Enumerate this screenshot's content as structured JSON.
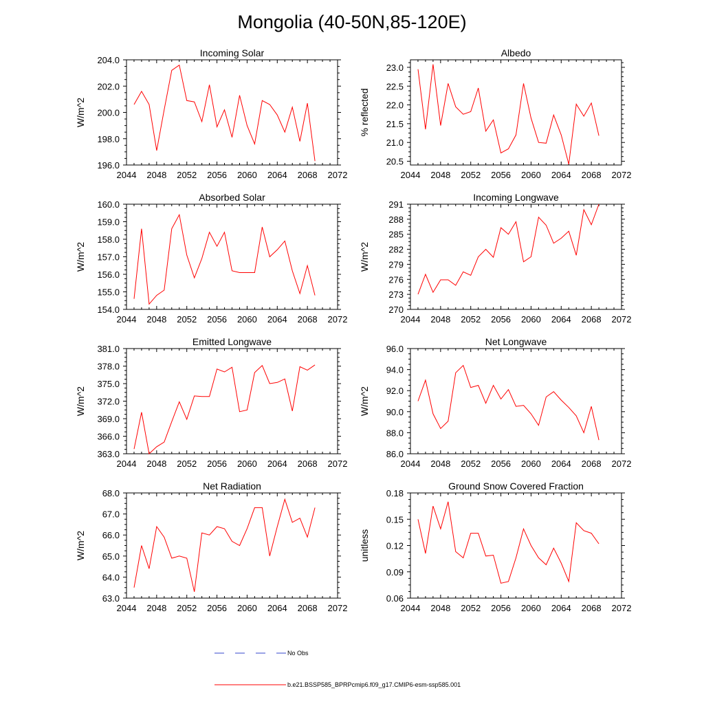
{
  "figure": {
    "title": "Mongolia (40-50N,85-120E)",
    "legend": {
      "no_obs_label": "No Obs",
      "no_obs_color": "#3344cc",
      "run_label": "b.e21.BSSP585_BPRPcmip6.f09_g17.CMIP6-esm-ssp585.001",
      "run_color": "#ff0000"
    }
  },
  "chart_data": [
    {
      "type": "line",
      "title": "Incoming Solar",
      "ylabel": "W/m^2",
      "xlim": [
        2044,
        2072
      ],
      "ylim": [
        196.0,
        204.0
      ],
      "xticks": [
        2044,
        2048,
        2052,
        2056,
        2060,
        2064,
        2068,
        2072
      ],
      "yticks": [
        "196.0",
        "198.0",
        "200.0",
        "202.0",
        "204.0"
      ],
      "x": [
        2045,
        2046,
        2047,
        2048,
        2049,
        2050,
        2051,
        2052,
        2053,
        2054,
        2055,
        2056,
        2057,
        2058,
        2059,
        2060,
        2061,
        2062,
        2063,
        2064,
        2065,
        2066,
        2067,
        2068,
        2069
      ],
      "series": [
        {
          "values": [
            200.6,
            201.6,
            200.6,
            197.1,
            200.2,
            203.2,
            203.6,
            200.9,
            200.8,
            199.3,
            202.1,
            198.9,
            200.2,
            198.1,
            201.3,
            199.0,
            197.6,
            200.9,
            200.6,
            199.8,
            198.5,
            200.4,
            197.8,
            200.7,
            196.3
          ]
        }
      ]
    },
    {
      "type": "line",
      "title": "Albedo",
      "ylabel": "% reflected",
      "xlim": [
        2044,
        2072
      ],
      "ylim": [
        20.4,
        23.2
      ],
      "xticks": [
        2044,
        2048,
        2052,
        2056,
        2060,
        2064,
        2068,
        2072
      ],
      "yticks": [
        "20.5",
        "21.0",
        "21.5",
        "22.0",
        "22.5",
        "23.0"
      ],
      "x": [
        2045,
        2046,
        2047,
        2048,
        2049,
        2050,
        2051,
        2052,
        2053,
        2054,
        2055,
        2056,
        2057,
        2058,
        2059,
        2060,
        2061,
        2062,
        2063,
        2064,
        2065,
        2066,
        2067,
        2068,
        2069
      ],
      "series": [
        {
          "values": [
            22.95,
            21.35,
            23.08,
            21.45,
            22.57,
            21.95,
            21.75,
            21.82,
            22.45,
            21.3,
            21.6,
            20.72,
            20.83,
            21.2,
            22.57,
            21.65,
            21.0,
            20.98,
            21.73,
            21.2,
            20.42,
            22.02,
            21.7,
            22.05,
            21.18
          ]
        }
      ]
    },
    {
      "type": "line",
      "title": "Absorbed Solar",
      "ylabel": "W/m^2",
      "xlim": [
        2044,
        2072
      ],
      "ylim": [
        154.0,
        160.0
      ],
      "xticks": [
        2044,
        2048,
        2052,
        2056,
        2060,
        2064,
        2068,
        2072
      ],
      "yticks": [
        "154.0",
        "155.0",
        "156.0",
        "157.0",
        "158.0",
        "159.0",
        "160.0"
      ],
      "x": [
        2045,
        2046,
        2047,
        2048,
        2049,
        2050,
        2051,
        2052,
        2053,
        2054,
        2055,
        2056,
        2057,
        2058,
        2059,
        2060,
        2061,
        2062,
        2063,
        2064,
        2065,
        2066,
        2067,
        2068,
        2069
      ],
      "series": [
        {
          "values": [
            154.6,
            158.6,
            154.3,
            154.8,
            155.1,
            158.6,
            159.4,
            157.1,
            155.8,
            156.9,
            158.4,
            157.6,
            158.4,
            156.2,
            156.1,
            156.1,
            156.1,
            158.7,
            157.0,
            157.4,
            157.9,
            156.2,
            154.9,
            156.5,
            154.8
          ]
        }
      ]
    },
    {
      "type": "line",
      "title": "Incoming Longwave",
      "ylabel": "W/m^2",
      "xlim": [
        2044,
        2072
      ],
      "ylim": [
        270,
        291
      ],
      "xticks": [
        2044,
        2048,
        2052,
        2056,
        2060,
        2064,
        2068,
        2072
      ],
      "yticks": [
        "270",
        "273",
        "276",
        "279",
        "282",
        "285",
        "288",
        "291"
      ],
      "x": [
        2045,
        2046,
        2047,
        2048,
        2049,
        2050,
        2051,
        2052,
        2053,
        2054,
        2055,
        2056,
        2057,
        2058,
        2059,
        2060,
        2061,
        2062,
        2063,
        2064,
        2065,
        2066,
        2067,
        2068,
        2069
      ],
      "series": [
        {
          "values": [
            273.0,
            277.0,
            273.4,
            275.9,
            275.9,
            274.8,
            277.5,
            276.8,
            280.5,
            282.0,
            280.4,
            286.3,
            285.0,
            287.5,
            279.5,
            280.5,
            288.4,
            286.8,
            283.2,
            284.2,
            285.6,
            280.8,
            289.9,
            286.9,
            291.0
          ]
        }
      ]
    },
    {
      "type": "line",
      "title": "Emitted Longwave",
      "ylabel": "W/m^2",
      "xlim": [
        2044,
        2072
      ],
      "ylim": [
        363.0,
        381.0
      ],
      "xticks": [
        2044,
        2048,
        2052,
        2056,
        2060,
        2064,
        2068,
        2072
      ],
      "yticks": [
        "363.0",
        "366.0",
        "369.0",
        "372.0",
        "375.0",
        "378.0",
        "381.0"
      ],
      "x": [
        2045,
        2046,
        2047,
        2048,
        2049,
        2050,
        2051,
        2052,
        2053,
        2054,
        2055,
        2056,
        2057,
        2058,
        2059,
        2060,
        2061,
        2062,
        2063,
        2064,
        2065,
        2066,
        2067,
        2068,
        2069
      ],
      "series": [
        {
          "values": [
            363.8,
            370.1,
            363.0,
            364.2,
            365.0,
            368.5,
            371.9,
            368.9,
            372.9,
            372.8,
            372.8,
            377.5,
            377.0,
            377.8,
            370.2,
            370.5,
            376.9,
            378.1,
            375.0,
            375.2,
            375.8,
            370.3,
            377.9,
            377.3,
            378.2
          ]
        }
      ]
    },
    {
      "type": "line",
      "title": "Net Longwave",
      "ylabel": "W/m^2",
      "xlim": [
        2044,
        2072
      ],
      "ylim": [
        86.0,
        96.0
      ],
      "xticks": [
        2044,
        2048,
        2052,
        2056,
        2060,
        2064,
        2068,
        2072
      ],
      "yticks": [
        "86.0",
        "88.0",
        "90.0",
        "92.0",
        "94.0",
        "96.0"
      ],
      "x": [
        2045,
        2046,
        2047,
        2048,
        2049,
        2050,
        2051,
        2052,
        2053,
        2054,
        2055,
        2056,
        2057,
        2058,
        2059,
        2060,
        2061,
        2062,
        2063,
        2064,
        2065,
        2066,
        2067,
        2068,
        2069
      ],
      "series": [
        {
          "values": [
            91.0,
            93.0,
            89.8,
            88.4,
            89.1,
            93.7,
            94.4,
            92.3,
            92.5,
            90.8,
            92.5,
            91.2,
            92.1,
            90.5,
            90.6,
            89.8,
            88.7,
            91.4,
            91.9,
            91.1,
            90.4,
            89.6,
            88.0,
            90.5,
            87.3
          ]
        }
      ]
    },
    {
      "type": "line",
      "title": "Net Radiation",
      "ylabel": "W/m^2",
      "xlim": [
        2044,
        2072
      ],
      "ylim": [
        63.0,
        68.0
      ],
      "xticks": [
        2044,
        2048,
        2052,
        2056,
        2060,
        2064,
        2068,
        2072
      ],
      "yticks": [
        "63.0",
        "64.0",
        "65.0",
        "66.0",
        "67.0",
        "68.0"
      ],
      "x": [
        2045,
        2046,
        2047,
        2048,
        2049,
        2050,
        2051,
        2052,
        2053,
        2054,
        2055,
        2056,
        2057,
        2058,
        2059,
        2060,
        2061,
        2062,
        2063,
        2064,
        2065,
        2066,
        2067,
        2068,
        2069
      ],
      "series": [
        {
          "values": [
            63.5,
            65.5,
            64.4,
            66.4,
            65.9,
            64.9,
            65.0,
            64.9,
            63.3,
            66.1,
            66.0,
            66.4,
            66.3,
            65.7,
            65.5,
            66.3,
            67.3,
            67.3,
            65.0,
            66.4,
            67.7,
            66.6,
            66.8,
            65.9,
            67.3
          ]
        }
      ]
    },
    {
      "type": "line",
      "title": "Ground Snow Covered Fraction",
      "ylabel": "unitless",
      "xlim": [
        2044,
        2072
      ],
      "ylim": [
        0.06,
        0.18
      ],
      "xticks": [
        2044,
        2048,
        2052,
        2056,
        2060,
        2064,
        2068,
        2072
      ],
      "yticks": [
        "0.06",
        "0.09",
        "0.12",
        "0.15",
        "0.18"
      ],
      "x": [
        2045,
        2046,
        2047,
        2048,
        2049,
        2050,
        2051,
        2052,
        2053,
        2054,
        2055,
        2056,
        2057,
        2058,
        2059,
        2060,
        2061,
        2062,
        2063,
        2064,
        2065,
        2066,
        2067,
        2068,
        2069
      ],
      "series": [
        {
          "values": [
            0.15,
            0.111,
            0.165,
            0.139,
            0.17,
            0.113,
            0.106,
            0.134,
            0.134,
            0.108,
            0.109,
            0.077,
            0.079,
            0.106,
            0.139,
            0.12,
            0.106,
            0.098,
            0.117,
            0.1,
            0.079,
            0.146,
            0.137,
            0.134,
            0.122
          ]
        }
      ]
    }
  ]
}
